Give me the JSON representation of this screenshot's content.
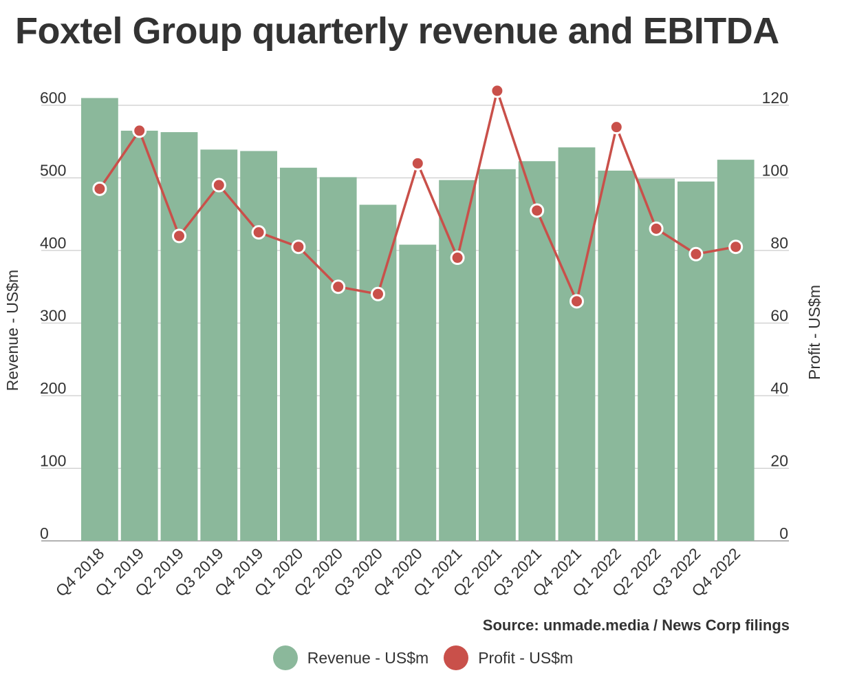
{
  "title": "Foxtel Group quarterly revenue and EBITDA",
  "source": "Source: unmade.media / News Corp filings",
  "colors": {
    "revenue": "#8bb89b",
    "profit": "#c9504a",
    "grid": "#cccccc",
    "text": "#333333"
  },
  "chart_data": {
    "type": "bar",
    "categories": [
      "Q4 2018",
      "Q1 2019",
      "Q2 2019",
      "Q3 2019",
      "Q4 2019",
      "Q1 2020",
      "Q2 2020",
      "Q3 2020",
      "Q4 2020",
      "Q1 2021",
      "Q2 2021",
      "Q3 2021",
      "Q4 2021",
      "Q1 2022",
      "Q2 2022",
      "Q3 2022",
      "Q4 2022"
    ],
    "series": [
      {
        "name": "Revenue - US$m",
        "type": "bar",
        "axis": "left",
        "values": [
          610,
          565,
          563,
          539,
          537,
          514,
          501,
          463,
          408,
          497,
          512,
          523,
          542,
          510,
          499,
          495,
          525
        ]
      },
      {
        "name": "Profit - US$m",
        "type": "line",
        "axis": "right",
        "values": [
          97,
          113,
          84,
          98,
          85,
          81,
          70,
          68,
          104,
          78,
          124,
          91,
          66,
          114,
          86,
          79,
          81
        ]
      }
    ],
    "ylabel": "Revenue - US$m",
    "ylabel_right": "Profit - US$m",
    "ylim": [
      0,
      600
    ],
    "ylim_right": [
      0,
      120
    ],
    "yticks": [
      0,
      100,
      200,
      300,
      400,
      500,
      600
    ],
    "yticks_right": [
      0,
      20,
      40,
      60,
      80,
      100,
      120
    ],
    "grid": true,
    "legend": "bottom-center"
  }
}
